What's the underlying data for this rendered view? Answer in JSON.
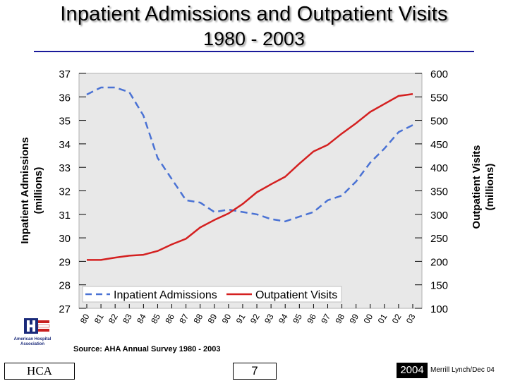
{
  "slide": {
    "title": "Inpatient Admissions and Outpatient Visits",
    "subtitle": "1980 - 2003",
    "source": "Source: AHA Annual Survey 1980 - 2003",
    "logo_text_line1": "American Hospital",
    "logo_text_line2": "Association",
    "footer": {
      "left": "HCA",
      "page": "7",
      "year": "2004",
      "right": "Merrill Lynch/Dec 04"
    }
  },
  "chart_data": {
    "type": "line",
    "title": "Inpatient Admissions and Outpatient Visits",
    "subtitle": "1980 - 2003",
    "categories": [
      "80",
      "81",
      "82",
      "83",
      "84",
      "85",
      "86",
      "87",
      "88",
      "89",
      "90",
      "91",
      "92",
      "93",
      "94",
      "95",
      "96",
      "97",
      "98",
      "99",
      "00",
      "01",
      "02",
      "03"
    ],
    "y_left": {
      "label_line1": "Inpatient Admissions",
      "label_line2": "(millions)",
      "range": [
        27,
        37
      ],
      "ticks": [
        "27",
        "28",
        "29",
        "30",
        "31",
        "32",
        "33",
        "34",
        "35",
        "36",
        "37"
      ]
    },
    "y_right": {
      "label_line1": "Outpatient Visits",
      "label_line2": "(millions)",
      "range": [
        100,
        600
      ],
      "ticks": [
        "100",
        "150",
        "200",
        "250",
        "300",
        "350",
        "400",
        "450",
        "500",
        "550",
        "600"
      ]
    },
    "series": [
      {
        "name": "Inpatient Admissions",
        "axis": "left",
        "color": "#4a72d4",
        "style": "dashed",
        "values": [
          36.1,
          36.4,
          36.4,
          36.2,
          35.2,
          33.4,
          32.5,
          31.6,
          31.5,
          31.1,
          31.2,
          31.1,
          31.0,
          30.8,
          30.7,
          30.9,
          31.1,
          31.6,
          31.8,
          32.4,
          33.2,
          33.8,
          34.5,
          34.8
        ]
      },
      {
        "name": "Outpatient Visits",
        "axis": "right",
        "color": "#d42020",
        "style": "solid",
        "values": [
          203,
          203,
          208,
          212,
          214,
          222,
          236,
          248,
          272,
          288,
          302,
          322,
          347,
          364,
          380,
          408,
          434,
          448,
          472,
          494,
          518,
          535,
          552,
          556
        ]
      }
    ],
    "legend_position": "bottom-inside",
    "grid": false
  }
}
